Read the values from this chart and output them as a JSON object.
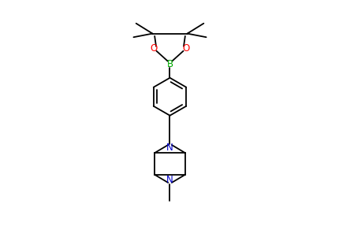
{
  "bg_color": "#ffffff",
  "line_color": "#000000",
  "N_color": "#0000cc",
  "O_color": "#ff0000",
  "B_color": "#00aa00",
  "figsize": [
    4.31,
    2.87
  ],
  "dpi": 100,
  "lw": 1.3,
  "fs": 8.5,
  "xlim": [
    -1.5,
    1.5
  ],
  "ylim": [
    -3.2,
    3.0
  ]
}
